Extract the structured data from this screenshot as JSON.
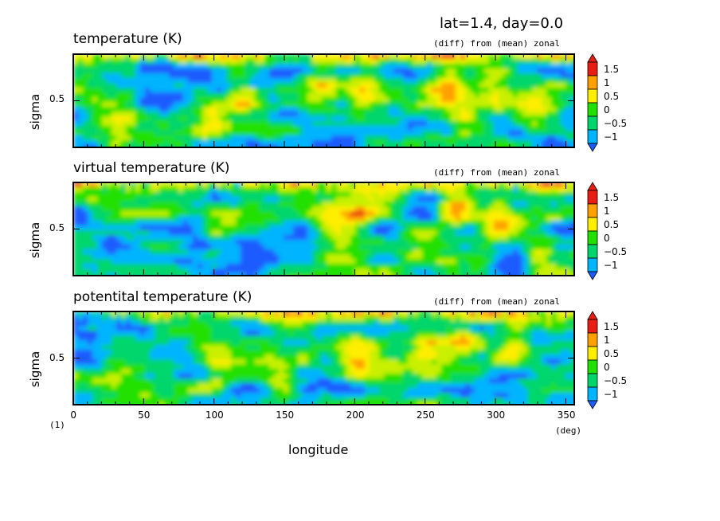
{
  "header": {
    "info": "lat=1.4, day=0.0"
  },
  "colorbar": {
    "colors": [
      "#1e5bff",
      "#00b4ff",
      "#00d66c",
      "#22e000",
      "#c8f000",
      "#ffee00",
      "#ffa000",
      "#e81e14"
    ],
    "tick_labels": [
      "1.5",
      "1",
      "0.5",
      "0",
      "−0.5",
      "−1"
    ]
  },
  "panels": [
    {
      "title": "temperature (K)",
      "subtitle": "(diff) from (mean) zonal",
      "ylabel": "sigma",
      "ytick": "0.5"
    },
    {
      "title": "virtual temperature (K)",
      "subtitle": "(diff) from (mean) zonal",
      "ylabel": "sigma",
      "ytick": "0.5"
    },
    {
      "title": "potentital temperature (K)",
      "subtitle": "(diff) from (mean) zonal",
      "ylabel": "sigma",
      "ytick": "0.5"
    }
  ],
  "xaxis": {
    "label": "longitude",
    "unit": "(deg)",
    "corner": "(1)",
    "ticks": [
      "0",
      "50",
      "100",
      "150",
      "200",
      "250",
      "300",
      "350"
    ]
  },
  "chart_data": [
    {
      "type": "heatmap",
      "title": "temperature (K)",
      "subtitle": "(diff) from (mean) zonal",
      "xlabel": "longitude",
      "ylabel": "sigma",
      "xlim": [
        0,
        356
      ],
      "xticks": [
        0,
        50,
        100,
        150,
        200,
        250,
        300,
        350
      ],
      "yticks": [
        0.5
      ],
      "colorbar_levels": [
        -1,
        -0.5,
        0,
        0.5,
        1,
        1.5
      ],
      "warm_regions": [
        {
          "x": 30,
          "sigma": 0.12
        },
        {
          "x": 95,
          "sigma": 0.35
        },
        {
          "x": 120,
          "sigma": 0.55
        },
        {
          "x": 175,
          "sigma": 0.62
        },
        {
          "x": 205,
          "sigma": 0.7
        },
        {
          "x": 265,
          "sigma": 0.68
        },
        {
          "x": 300,
          "sigma": 0.6
        },
        {
          "x": 325,
          "sigma": 0.45
        }
      ]
    },
    {
      "type": "heatmap",
      "title": "virtual temperature (K)",
      "subtitle": "(diff) from (mean) zonal",
      "xlabel": "longitude",
      "ylabel": "sigma",
      "xlim": [
        0,
        356
      ],
      "xticks": [
        0,
        50,
        100,
        150,
        200,
        250,
        300,
        350
      ],
      "yticks": [
        0.5
      ],
      "colorbar_levels": [
        -1,
        -0.5,
        0,
        0.5,
        1,
        1.5
      ],
      "warm_regions": [
        {
          "x": 100,
          "sigma": 0.55
        },
        {
          "x": 180,
          "sigma": 0.62
        },
        {
          "x": 200,
          "sigma": 0.65
        },
        {
          "x": 270,
          "sigma": 0.7
        },
        {
          "x": 300,
          "sigma": 0.55
        },
        {
          "x": 330,
          "sigma": 0.3
        }
      ]
    },
    {
      "type": "heatmap",
      "title": "potentital temperature (K)",
      "subtitle": "(diff) from (mean) zonal",
      "xlabel": "longitude",
      "ylabel": "sigma",
      "xlim": [
        0,
        356
      ],
      "xticks": [
        0,
        50,
        100,
        150,
        200,
        250,
        300,
        350
      ],
      "yticks": [
        0.5
      ],
      "colorbar_levels": [
        -1,
        -0.5,
        0,
        0.5,
        1,
        1.5
      ],
      "warm_regions": [
        {
          "x": 100,
          "sigma": 0.5
        },
        {
          "x": 145,
          "sigma": 0.25
        },
        {
          "x": 200,
          "sigma": 0.55
        },
        {
          "x": 250,
          "sigma": 0.6
        },
        {
          "x": 275,
          "sigma": 0.7
        },
        {
          "x": 310,
          "sigma": 0.6
        }
      ]
    }
  ]
}
